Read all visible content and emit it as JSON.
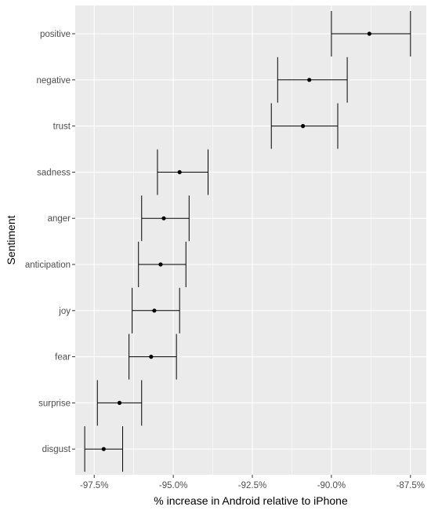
{
  "chart_data": {
    "type": "errorbar",
    "title": "",
    "xlabel": "% increase in Android relative to iPhone",
    "ylabel": "Sentiment",
    "xlim": [
      -98.1,
      -87.0
    ],
    "x_ticks": [
      -97.5,
      -95.0,
      -92.5,
      -90.0,
      -87.5
    ],
    "x_tick_labels": [
      "-97.5%",
      "-95.0%",
      "-92.5%",
      "-90.0%",
      "-87.5%"
    ],
    "x_minor_ticks": [
      -96.25,
      -93.75,
      -91.25,
      -88.75
    ],
    "grid": true,
    "categories": [
      "positive",
      "negative",
      "trust",
      "sadness",
      "anger",
      "anticipation",
      "joy",
      "fear",
      "surprise",
      "disgust"
    ],
    "estimate": [
      -88.8,
      -90.7,
      -90.9,
      -94.8,
      -95.3,
      -95.4,
      -95.6,
      -95.7,
      -96.7,
      -97.2
    ],
    "lower": [
      -90.0,
      -91.7,
      -91.9,
      -95.5,
      -96.0,
      -96.1,
      -96.3,
      -96.4,
      -97.4,
      -97.8
    ],
    "upper": [
      -87.5,
      -89.5,
      -89.8,
      -93.9,
      -94.5,
      -94.6,
      -94.8,
      -94.9,
      -96.0,
      -96.6
    ],
    "colors": {
      "panel_background": "#ebebeb",
      "grid_major": "#ffffff",
      "marks": "#000000",
      "tick_text": "#4d4d4d",
      "tick_marks": "#333333"
    }
  }
}
